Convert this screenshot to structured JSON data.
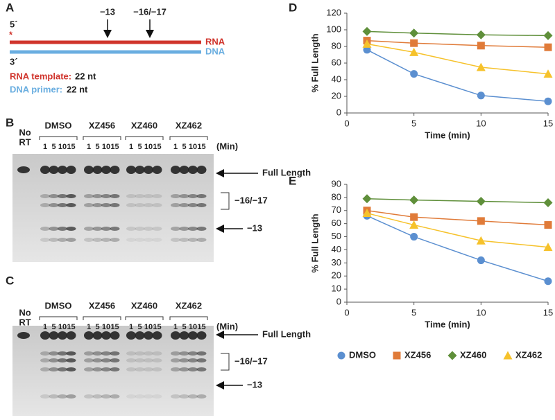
{
  "panel_labels": [
    "A",
    "B",
    "C",
    "D",
    "E"
  ],
  "diagram": {
    "five_prime": "5´",
    "star": "*",
    "three_prime": "3´",
    "rna": "RNA",
    "dna": "DNA",
    "markers": [
      "−13",
      "−16/−17"
    ],
    "rna_template": "RNA template:",
    "rna_len": "22 nt",
    "dna_primer": "DNA primer:",
    "dna_len": "22 nt"
  },
  "gels": [
    {
      "no_rt": [
        "No",
        "RT"
      ],
      "groups": [
        "DMSO",
        "XZ456",
        "XZ460",
        "XZ462"
      ],
      "times": [
        "1",
        "5",
        "10",
        "15"
      ],
      "unit": "(Min)",
      "annotations": [
        "Full Length",
        "−16/−17",
        "−13"
      ]
    },
    {
      "no_rt": [
        "No",
        "RT"
      ],
      "groups": [
        "DMSO",
        "XZ456",
        "XZ460",
        "XZ462"
      ],
      "times": [
        "1",
        "5",
        "10",
        "15"
      ],
      "unit": "(Min)",
      "annotations": [
        "Full Length",
        "−16/−17",
        "−13"
      ]
    }
  ],
  "chart_data": [
    {
      "type": "line",
      "x_label": "Time (min)",
      "y_label": "% Full Length",
      "x": [
        1.5,
        5,
        10,
        15
      ],
      "xlim": [
        0,
        15
      ],
      "xticks": [
        0,
        5,
        10,
        15
      ],
      "ylim": [
        0,
        120
      ],
      "yticks": [
        0,
        20,
        40,
        60,
        80,
        100,
        120
      ],
      "series": [
        {
          "color": "#5b8fd0",
          "marker": "circle",
          "values": [
            76,
            47,
            21,
            14
          ]
        },
        {
          "color": "#e07b39",
          "marker": "square",
          "values": [
            87,
            84,
            81,
            79
          ]
        },
        {
          "color": "#5f8f3a",
          "marker": "diamond",
          "values": [
            98,
            96,
            94,
            93
          ]
        },
        {
          "color": "#f6c22b",
          "marker": "triangle",
          "values": [
            83,
            73,
            55,
            47
          ]
        }
      ]
    },
    {
      "type": "line",
      "x_label": "Time (min)",
      "y_label": "% Full Length",
      "x": [
        1.5,
        5,
        10,
        15
      ],
      "xlim": [
        0,
        15
      ],
      "xticks": [
        0,
        5,
        10,
        15
      ],
      "ylim": [
        0,
        90
      ],
      "yticks": [
        0,
        10,
        20,
        30,
        40,
        50,
        60,
        70,
        80,
        90
      ],
      "legend": "bottom",
      "series": [
        {
          "name": "DMSO",
          "color": "#5b8fd0",
          "marker": "circle",
          "values": [
            66,
            50,
            32,
            16
          ]
        },
        {
          "name": "XZ456",
          "color": "#e07b39",
          "marker": "square",
          "values": [
            70,
            65,
            62,
            59
          ]
        },
        {
          "name": "XZ460",
          "color": "#5f8f3a",
          "marker": "diamond",
          "values": [
            79,
            78,
            77,
            76
          ]
        },
        {
          "name": "XZ462",
          "color": "#f6c22b",
          "marker": "triangle",
          "values": [
            68,
            59,
            47,
            42
          ]
        }
      ]
    }
  ]
}
